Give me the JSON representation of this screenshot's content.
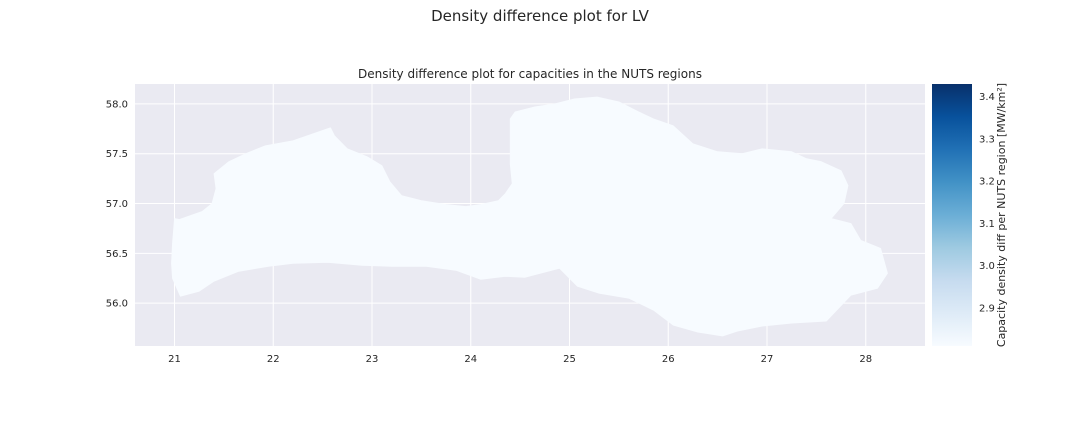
{
  "figure": {
    "suptitle": "Density difference plot for LV"
  },
  "map": {
    "title": "Density difference plot for capacities in the NUTS regions",
    "xlim": [
      20.6,
      28.6
    ],
    "ylim": [
      55.57,
      58.2
    ],
    "x_ticks": [
      "21",
      "22",
      "23",
      "24",
      "25",
      "26",
      "27",
      "28"
    ],
    "y_ticks": [
      "56.0",
      "56.5",
      "57.0",
      "57.5",
      "58.0"
    ],
    "background_color": "#eaeaf2",
    "grid_color": "#ffffff",
    "region_fill": "#f7fbff",
    "regions": [
      {
        "name": "LV",
        "boundary": [
          [
            21.0,
            56.85
          ],
          [
            21.05,
            56.84
          ],
          [
            21.28,
            56.92
          ],
          [
            21.38,
            57.0
          ],
          [
            21.42,
            57.15
          ],
          [
            21.4,
            57.3
          ],
          [
            21.55,
            57.42
          ],
          [
            21.72,
            57.5
          ],
          [
            21.92,
            57.58
          ],
          [
            22.2,
            57.63
          ],
          [
            22.58,
            57.76
          ],
          [
            22.62,
            57.68
          ],
          [
            22.75,
            57.55
          ],
          [
            22.95,
            57.47
          ],
          [
            23.1,
            57.38
          ],
          [
            23.18,
            57.22
          ],
          [
            23.3,
            57.08
          ],
          [
            23.5,
            57.03
          ],
          [
            23.75,
            56.99
          ],
          [
            23.95,
            56.97
          ],
          [
            24.1,
            56.99
          ],
          [
            24.28,
            57.03
          ],
          [
            24.35,
            57.1
          ],
          [
            24.42,
            57.2
          ],
          [
            24.4,
            57.4
          ],
          [
            24.4,
            57.65
          ],
          [
            24.4,
            57.85
          ],
          [
            24.45,
            57.92
          ],
          [
            24.65,
            57.97
          ],
          [
            24.85,
            58.0
          ],
          [
            25.05,
            58.05
          ],
          [
            25.28,
            58.07
          ],
          [
            25.5,
            58.02
          ],
          [
            25.7,
            57.92
          ],
          [
            25.85,
            57.85
          ],
          [
            26.05,
            57.78
          ],
          [
            26.25,
            57.6
          ],
          [
            26.5,
            57.52
          ],
          [
            26.75,
            57.5
          ],
          [
            26.95,
            57.55
          ],
          [
            27.25,
            57.52
          ],
          [
            27.4,
            57.45
          ],
          [
            27.55,
            57.42
          ],
          [
            27.75,
            57.33
          ],
          [
            27.82,
            57.18
          ],
          [
            27.78,
            57.0
          ],
          [
            27.65,
            56.85
          ],
          [
            27.85,
            56.8
          ],
          [
            27.95,
            56.63
          ],
          [
            28.15,
            56.55
          ],
          [
            28.22,
            56.3
          ],
          [
            28.12,
            56.15
          ],
          [
            27.85,
            56.08
          ],
          [
            27.6,
            55.82
          ],
          [
            27.25,
            55.8
          ],
          [
            26.95,
            55.77
          ],
          [
            26.7,
            55.72
          ],
          [
            26.55,
            55.67
          ],
          [
            26.3,
            55.71
          ],
          [
            26.05,
            55.78
          ],
          [
            25.85,
            55.93
          ],
          [
            25.6,
            56.05
          ],
          [
            25.3,
            56.1
          ],
          [
            25.08,
            56.17
          ],
          [
            24.9,
            56.35
          ],
          [
            24.55,
            56.26
          ],
          [
            24.35,
            56.27
          ],
          [
            24.1,
            56.24
          ],
          [
            23.85,
            56.33
          ],
          [
            23.55,
            56.37
          ],
          [
            23.2,
            56.37
          ],
          [
            22.9,
            56.38
          ],
          [
            22.55,
            56.41
          ],
          [
            22.2,
            56.4
          ],
          [
            21.95,
            56.37
          ],
          [
            21.65,
            56.32
          ],
          [
            21.4,
            56.22
          ],
          [
            21.25,
            56.12
          ],
          [
            21.06,
            56.07
          ],
          [
            20.98,
            56.25
          ],
          [
            20.97,
            56.4
          ],
          [
            20.98,
            56.6
          ],
          [
            21.0,
            56.85
          ]
        ]
      }
    ]
  },
  "colorbar": {
    "label": "Capacity density diff per NUTS region [MW/km²]",
    "cmap": "Blues",
    "vmin": 2.81,
    "vmax": 3.43,
    "ticks": [
      "2.9",
      "3.0",
      "3.1",
      "3.2",
      "3.3",
      "3.4"
    ],
    "color_stops": [
      "#f7fbff",
      "#deebf7",
      "#c6dbef",
      "#9ecae1",
      "#6baed6",
      "#4292c6",
      "#2171b5",
      "#08519c",
      "#08306b"
    ]
  }
}
